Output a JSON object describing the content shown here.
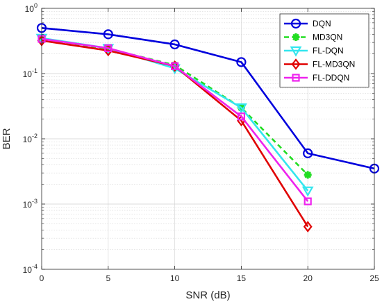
{
  "chart_data": {
    "type": "line",
    "xlabel": "SNR (dB)",
    "ylabel": "BER",
    "x_scale": "linear",
    "y_scale": "log",
    "xlim": [
      0,
      25
    ],
    "ylim": [
      0.0001,
      1
    ],
    "x_ticks": [
      0,
      5,
      10,
      15,
      20,
      25
    ],
    "x_tick_labels": [
      "0",
      "5",
      "10",
      "15",
      "20",
      "25"
    ],
    "y_ticks": [
      0.0001,
      0.001,
      0.01,
      0.1,
      1
    ],
    "y_tick_labels": [
      {
        "base": "10",
        "exp": "-4"
      },
      {
        "base": "10",
        "exp": "-3"
      },
      {
        "base": "10",
        "exp": "-2"
      },
      {
        "base": "10",
        "exp": "-1"
      },
      {
        "base": "10",
        "exp": "0"
      }
    ],
    "grid": true,
    "minor_grid": true,
    "legend_position": "top-right",
    "series": [
      {
        "name": "DQN",
        "color": "#0000dd",
        "marker": "circle",
        "dash": "solid",
        "x": [
          0,
          5,
          10,
          15,
          20,
          25
        ],
        "y": [
          0.5,
          0.4,
          0.28,
          0.15,
          0.006,
          0.0035
        ]
      },
      {
        "name": "MD3QN",
        "color": "#22dd22",
        "marker": "asterisk",
        "dash": "dashed",
        "x": [
          0,
          5,
          10,
          15,
          20
        ],
        "y": [
          0.33,
          0.24,
          0.135,
          0.03,
          0.0028
        ]
      },
      {
        "name": "FL-DQN",
        "color": "#33e6ee",
        "marker": "triangle-down",
        "dash": "solid",
        "x": [
          0,
          5,
          10,
          15,
          20
        ],
        "y": [
          0.35,
          0.245,
          0.12,
          0.03,
          0.0016
        ]
      },
      {
        "name": "FL-MD3QN",
        "color": "#e00000",
        "marker": "diamond",
        "dash": "solid",
        "x": [
          0,
          5,
          10,
          15,
          20
        ],
        "y": [
          0.32,
          0.225,
          0.13,
          0.019,
          0.00045
        ]
      },
      {
        "name": "FL-DDQN",
        "color": "#ee22ee",
        "marker": "square",
        "dash": "solid",
        "x": [
          0,
          5,
          10,
          15,
          20
        ],
        "y": [
          0.34,
          0.245,
          0.13,
          0.022,
          0.0011
        ]
      }
    ]
  }
}
